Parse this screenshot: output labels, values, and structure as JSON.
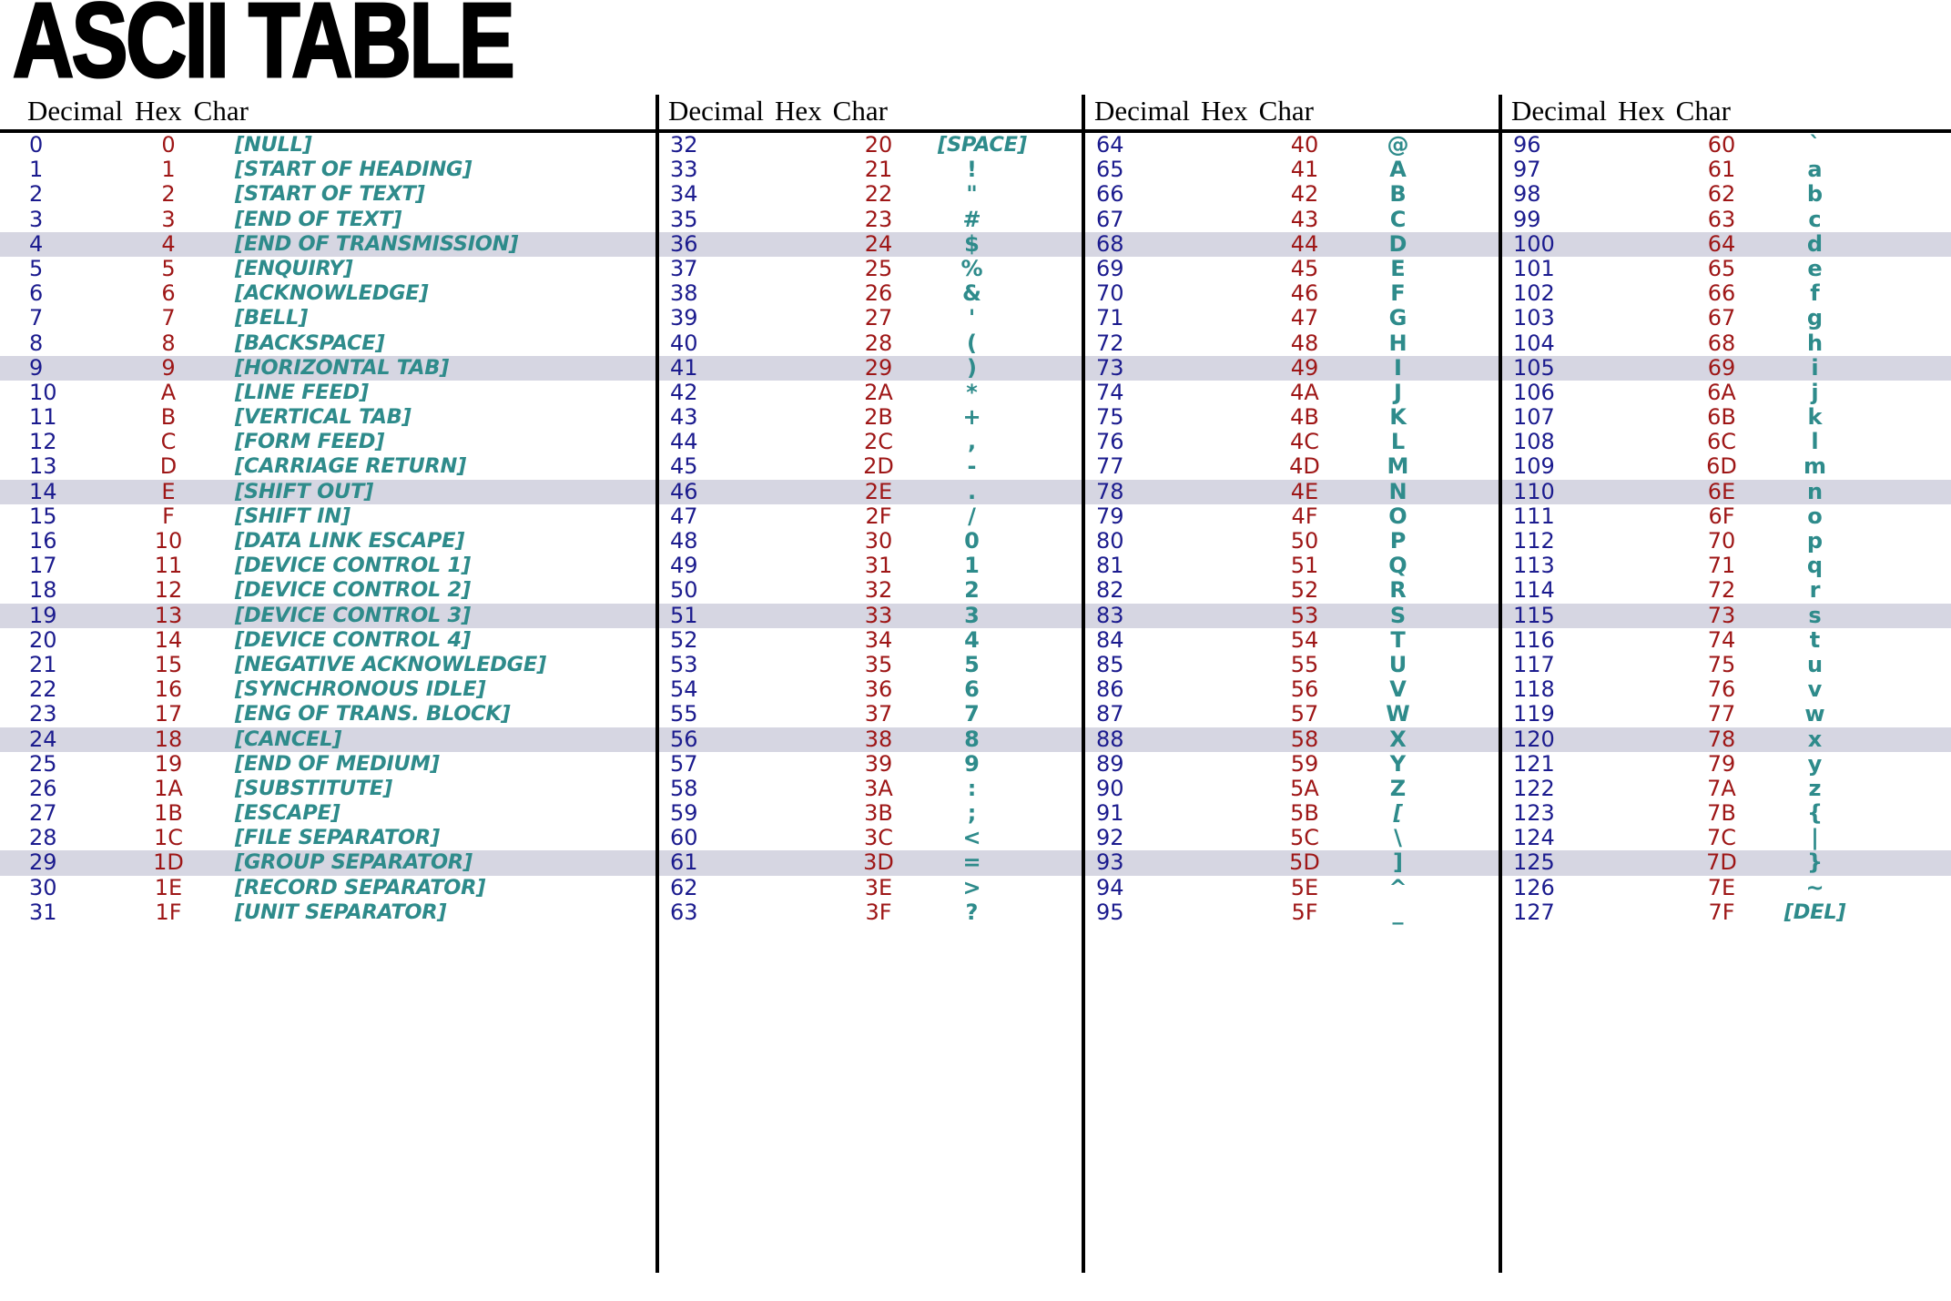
{
  "title": "ASCII TABLE",
  "columns": [
    "Decimal",
    "Hex",
    "Char"
  ],
  "colors": {
    "decimal": "#1b1b8e",
    "hex": "#9e1616",
    "char": "#2e8b8b",
    "highlight_band": "#d6d6e2",
    "ink": "#000000"
  },
  "highlight_rows": [
    4,
    9,
    14,
    19,
    24,
    29
  ],
  "groups": [
    {
      "rows": [
        [
          "0",
          "0",
          "[NULL]"
        ],
        [
          "1",
          "1",
          "[START OF HEADING]"
        ],
        [
          "2",
          "2",
          "[START OF TEXT]"
        ],
        [
          "3",
          "3",
          "[END OF TEXT]"
        ],
        [
          "4",
          "4",
          "[END OF TRANSMISSION]"
        ],
        [
          "5",
          "5",
          "[ENQUIRY]"
        ],
        [
          "6",
          "6",
          "[ACKNOWLEDGE]"
        ],
        [
          "7",
          "7",
          "[BELL]"
        ],
        [
          "8",
          "8",
          "[BACKSPACE]"
        ],
        [
          "9",
          "9",
          "[HORIZONTAL TAB]"
        ],
        [
          "10",
          "A",
          "[LINE FEED]"
        ],
        [
          "11",
          "B",
          "[VERTICAL TAB]"
        ],
        [
          "12",
          "C",
          "[FORM FEED]"
        ],
        [
          "13",
          "D",
          "[CARRIAGE RETURN]"
        ],
        [
          "14",
          "E",
          "[SHIFT OUT]"
        ],
        [
          "15",
          "F",
          "[SHIFT IN]"
        ],
        [
          "16",
          "10",
          "[DATA LINK ESCAPE]"
        ],
        [
          "17",
          "11",
          "[DEVICE CONTROL 1]"
        ],
        [
          "18",
          "12",
          "[DEVICE CONTROL 2]"
        ],
        [
          "19",
          "13",
          "[DEVICE CONTROL 3]"
        ],
        [
          "20",
          "14",
          "[DEVICE CONTROL 4]"
        ],
        [
          "21",
          "15",
          "[NEGATIVE ACKNOWLEDGE]"
        ],
        [
          "22",
          "16",
          "[SYNCHRONOUS IDLE]"
        ],
        [
          "23",
          "17",
          "[ENG OF TRANS. BLOCK]"
        ],
        [
          "24",
          "18",
          "[CANCEL]"
        ],
        [
          "25",
          "19",
          "[END OF MEDIUM]"
        ],
        [
          "26",
          "1A",
          "[SUBSTITUTE]"
        ],
        [
          "27",
          "1B",
          "[ESCAPE]"
        ],
        [
          "28",
          "1C",
          "[FILE SEPARATOR]"
        ],
        [
          "29",
          "1D",
          "[GROUP SEPARATOR]"
        ],
        [
          "30",
          "1E",
          "[RECORD SEPARATOR]"
        ],
        [
          "31",
          "1F",
          "[UNIT SEPARATOR]"
        ]
      ]
    },
    {
      "rows": [
        [
          "32",
          "20",
          "[SPACE]"
        ],
        [
          "33",
          "21",
          "!"
        ],
        [
          "34",
          "22",
          "\""
        ],
        [
          "35",
          "23",
          "#"
        ],
        [
          "36",
          "24",
          "$"
        ],
        [
          "37",
          "25",
          "%"
        ],
        [
          "38",
          "26",
          "&"
        ],
        [
          "39",
          "27",
          "'"
        ],
        [
          "40",
          "28",
          "("
        ],
        [
          "41",
          "29",
          ")"
        ],
        [
          "42",
          "2A",
          "*"
        ],
        [
          "43",
          "2B",
          "+"
        ],
        [
          "44",
          "2C",
          ","
        ],
        [
          "45",
          "2D",
          "-"
        ],
        [
          "46",
          "2E",
          "."
        ],
        [
          "47",
          "2F",
          "/"
        ],
        [
          "48",
          "30",
          "0"
        ],
        [
          "49",
          "31",
          "1"
        ],
        [
          "50",
          "32",
          "2"
        ],
        [
          "51",
          "33",
          "3"
        ],
        [
          "52",
          "34",
          "4"
        ],
        [
          "53",
          "35",
          "5"
        ],
        [
          "54",
          "36",
          "6"
        ],
        [
          "55",
          "37",
          "7"
        ],
        [
          "56",
          "38",
          "8"
        ],
        [
          "57",
          "39",
          "9"
        ],
        [
          "58",
          "3A",
          ":"
        ],
        [
          "59",
          "3B",
          ";"
        ],
        [
          "60",
          "3C",
          "<"
        ],
        [
          "61",
          "3D",
          "="
        ],
        [
          "62",
          "3E",
          ">"
        ],
        [
          "63",
          "3F",
          "?"
        ]
      ]
    },
    {
      "rows": [
        [
          "64",
          "40",
          "@"
        ],
        [
          "65",
          "41",
          "A"
        ],
        [
          "66",
          "42",
          "B"
        ],
        [
          "67",
          "43",
          "C"
        ],
        [
          "68",
          "44",
          "D"
        ],
        [
          "69",
          "45",
          "E"
        ],
        [
          "70",
          "46",
          "F"
        ],
        [
          "71",
          "47",
          "G"
        ],
        [
          "72",
          "48",
          "H"
        ],
        [
          "73",
          "49",
          "I"
        ],
        [
          "74",
          "4A",
          "J"
        ],
        [
          "75",
          "4B",
          "K"
        ],
        [
          "76",
          "4C",
          "L"
        ],
        [
          "77",
          "4D",
          "M"
        ],
        [
          "78",
          "4E",
          "N"
        ],
        [
          "79",
          "4F",
          "O"
        ],
        [
          "80",
          "50",
          "P"
        ],
        [
          "81",
          "51",
          "Q"
        ],
        [
          "82",
          "52",
          "R"
        ],
        [
          "83",
          "53",
          "S"
        ],
        [
          "84",
          "54",
          "T"
        ],
        [
          "85",
          "55",
          "U"
        ],
        [
          "86",
          "56",
          "V"
        ],
        [
          "87",
          "57",
          "W"
        ],
        [
          "88",
          "58",
          "X"
        ],
        [
          "89",
          "59",
          "Y"
        ],
        [
          "90",
          "5A",
          "Z"
        ],
        [
          "91",
          "5B",
          "["
        ],
        [
          "92",
          "5C",
          "\\"
        ],
        [
          "93",
          "5D",
          "]"
        ],
        [
          "94",
          "5E",
          "^"
        ],
        [
          "95",
          "5F",
          "_"
        ]
      ]
    },
    {
      "rows": [
        [
          "96",
          "60",
          "`"
        ],
        [
          "97",
          "61",
          "a"
        ],
        [
          "98",
          "62",
          "b"
        ],
        [
          "99",
          "63",
          "c"
        ],
        [
          "100",
          "64",
          "d"
        ],
        [
          "101",
          "65",
          "e"
        ],
        [
          "102",
          "66",
          "f"
        ],
        [
          "103",
          "67",
          "g"
        ],
        [
          "104",
          "68",
          "h"
        ],
        [
          "105",
          "69",
          "i"
        ],
        [
          "106",
          "6A",
          "j"
        ],
        [
          "107",
          "6B",
          "k"
        ],
        [
          "108",
          "6C",
          "l"
        ],
        [
          "109",
          "6D",
          "m"
        ],
        [
          "110",
          "6E",
          "n"
        ],
        [
          "111",
          "6F",
          "o"
        ],
        [
          "112",
          "70",
          "p"
        ],
        [
          "113",
          "71",
          "q"
        ],
        [
          "114",
          "72",
          "r"
        ],
        [
          "115",
          "73",
          "s"
        ],
        [
          "116",
          "74",
          "t"
        ],
        [
          "117",
          "75",
          "u"
        ],
        [
          "118",
          "76",
          "v"
        ],
        [
          "119",
          "77",
          "w"
        ],
        [
          "120",
          "78",
          "x"
        ],
        [
          "121",
          "79",
          "y"
        ],
        [
          "122",
          "7A",
          "z"
        ],
        [
          "123",
          "7B",
          "{"
        ],
        [
          "124",
          "7C",
          "|"
        ],
        [
          "125",
          "7D",
          "}"
        ],
        [
          "126",
          "7E",
          "~"
        ],
        [
          "127",
          "7F",
          "[DEL]"
        ]
      ]
    }
  ]
}
